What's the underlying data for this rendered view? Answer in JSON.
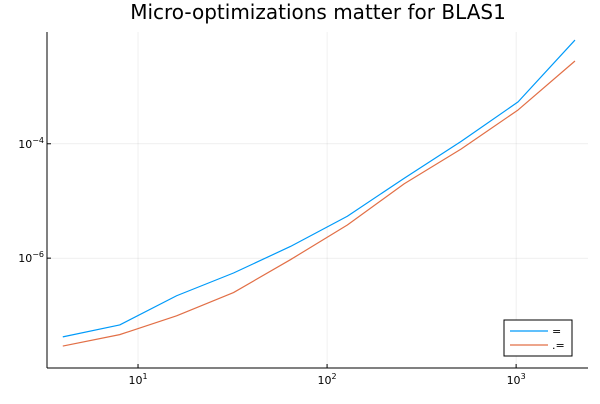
{
  "chart_data": {
    "type": "line",
    "title": "Micro-optimizations matter for BLAS1",
    "xscale": "log10",
    "yscale": "log10",
    "xlim": [
      3.3,
      2400
    ],
    "ylim": [
      1.2e-08,
      0.009
    ],
    "x_ticks": [
      {
        "value": 10,
        "base": "10",
        "exp": "1"
      },
      {
        "value": 100,
        "base": "10",
        "exp": "2"
      },
      {
        "value": 1000,
        "base": "10",
        "exp": "3"
      }
    ],
    "y_ticks": [
      {
        "value": 1e-06,
        "base": "10",
        "exp": "−6"
      },
      {
        "value": 0.0001,
        "base": "10",
        "exp": "−4"
      }
    ],
    "grid": true,
    "legend_position": "bottom-right",
    "x": [
      4,
      8,
      16,
      32,
      64,
      128,
      256,
      512,
      1024,
      2048
    ],
    "series": [
      {
        "name": "=",
        "color": "#009af9",
        "values": [
          4.2e-08,
          6.8e-08,
          2.2e-07,
          5.5e-07,
          1.6e-06,
          5.4e-06,
          2.5e-05,
          0.00011,
          0.00054,
          0.0065
        ]
      },
      {
        "name": ".=",
        "color": "#e26f46",
        "values": [
          2.9e-08,
          4.6e-08,
          9.8e-08,
          2.5e-07,
          9.4e-07,
          3.8e-06,
          2e-05,
          8.1e-05,
          0.00039,
          0.0028
        ]
      }
    ]
  }
}
